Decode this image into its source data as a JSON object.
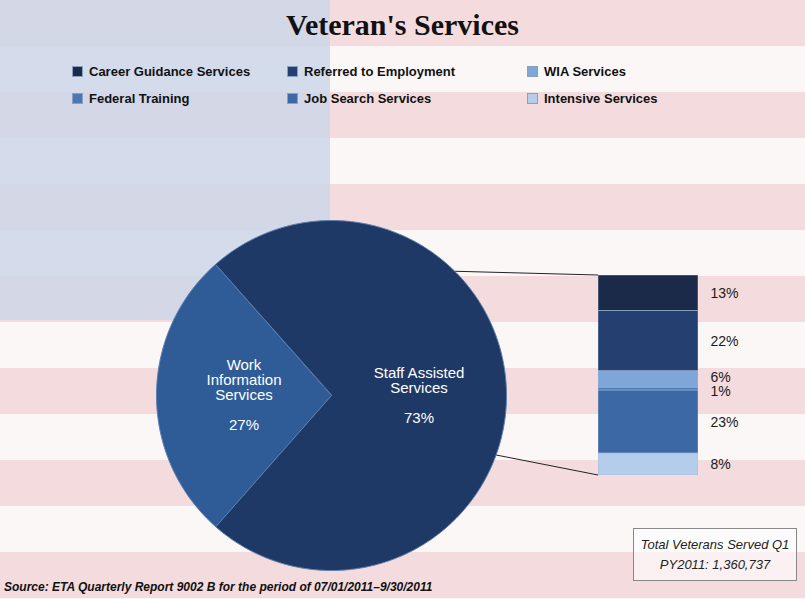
{
  "chart_data": [
    {
      "type": "pie",
      "title": "Veteran's Services",
      "categories": [
        "Work Information Services",
        "Staff Assisted Services"
      ],
      "values": [
        27,
        73
      ],
      "value_labels": [
        "27%",
        "73%"
      ],
      "colors": [
        "#2f5c97",
        "#1f3966"
      ],
      "data_labels": true,
      "annotations": [
        "Total Veterans Served Q1",
        "PY2011: 1,360,737"
      ],
      "caption": "Source: ETA Quarterly Report 9002 B for the period of 07/01/2011–9/30/2011"
    },
    {
      "type": "bar",
      "stacked": true,
      "legend": "top",
      "tick_labels": false,
      "data_labels": true,
      "ylim": [
        0,
        73
      ],
      "series": [
        {
          "name": "Career Guidance Services",
          "color": "#1c2a4a",
          "values": [
            13
          ],
          "value_labels": [
            "13%"
          ]
        },
        {
          "name": "Referred to Employment",
          "color": "#243f70",
          "values": [
            22
          ],
          "value_labels": [
            "22%"
          ]
        },
        {
          "name": "WIA Services",
          "color": "#7ea6d6",
          "values": [
            6
          ],
          "value_labels": [
            "6%"
          ]
        },
        {
          "name": "Federal Training",
          "color": "#4a78b5",
          "values": [
            1
          ],
          "value_labels": [
            "1%"
          ]
        },
        {
          "name": "Job Search Services",
          "color": "#3c68a6",
          "values": [
            23
          ],
          "value_labels": [
            "23%"
          ]
        },
        {
          "name": "Intensive Services",
          "color": "#b3cdea",
          "values": [
            8
          ],
          "value_labels": [
            "8%"
          ]
        }
      ]
    }
  ]
}
